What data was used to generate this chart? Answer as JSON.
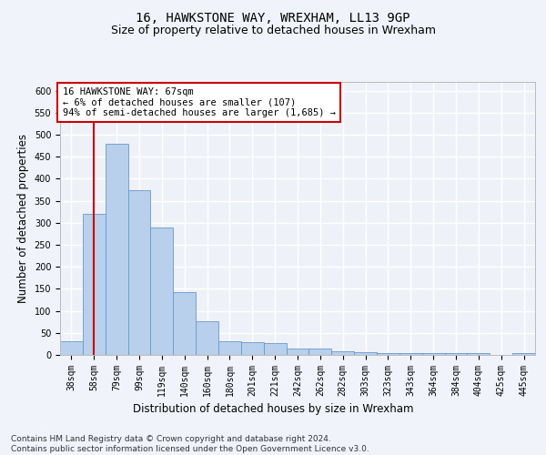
{
  "title": "16, HAWKSTONE WAY, WREXHAM, LL13 9GP",
  "subtitle": "Size of property relative to detached houses in Wrexham",
  "xlabel": "Distribution of detached houses by size in Wrexham",
  "ylabel": "Number of detached properties",
  "categories": [
    "38sqm",
    "58sqm",
    "79sqm",
    "99sqm",
    "119sqm",
    "140sqm",
    "160sqm",
    "180sqm",
    "201sqm",
    "221sqm",
    "242sqm",
    "262sqm",
    "282sqm",
    "303sqm",
    "323sqm",
    "343sqm",
    "364sqm",
    "384sqm",
    "404sqm",
    "425sqm",
    "445sqm"
  ],
  "values": [
    32,
    320,
    480,
    375,
    290,
    143,
    76,
    32,
    29,
    27,
    15,
    15,
    8,
    6,
    5,
    5,
    4,
    4,
    4,
    1,
    5
  ],
  "bar_color": "#b8d0eb",
  "bar_edge_color": "#6699cc",
  "vline_x": 1.0,
  "vline_color": "#cc0000",
  "annotation_text": "16 HAWKSTONE WAY: 67sqm\n← 6% of detached houses are smaller (107)\n94% of semi-detached houses are larger (1,685) →",
  "annotation_box_color": "#ffffff",
  "annotation_box_edge": "#cc0000",
  "ylim": [
    0,
    620
  ],
  "yticks": [
    0,
    50,
    100,
    150,
    200,
    250,
    300,
    350,
    400,
    450,
    500,
    550,
    600
  ],
  "footer": "Contains HM Land Registry data © Crown copyright and database right 2024.\nContains public sector information licensed under the Open Government Licence v3.0.",
  "background_color": "#f0f4fa",
  "plot_bg_color": "#eef2f8",
  "grid_color": "#ffffff",
  "title_fontsize": 10,
  "subtitle_fontsize": 9,
  "axis_label_fontsize": 8.5,
  "tick_fontsize": 7,
  "footer_fontsize": 6.5,
  "annotation_fontsize": 7.5
}
